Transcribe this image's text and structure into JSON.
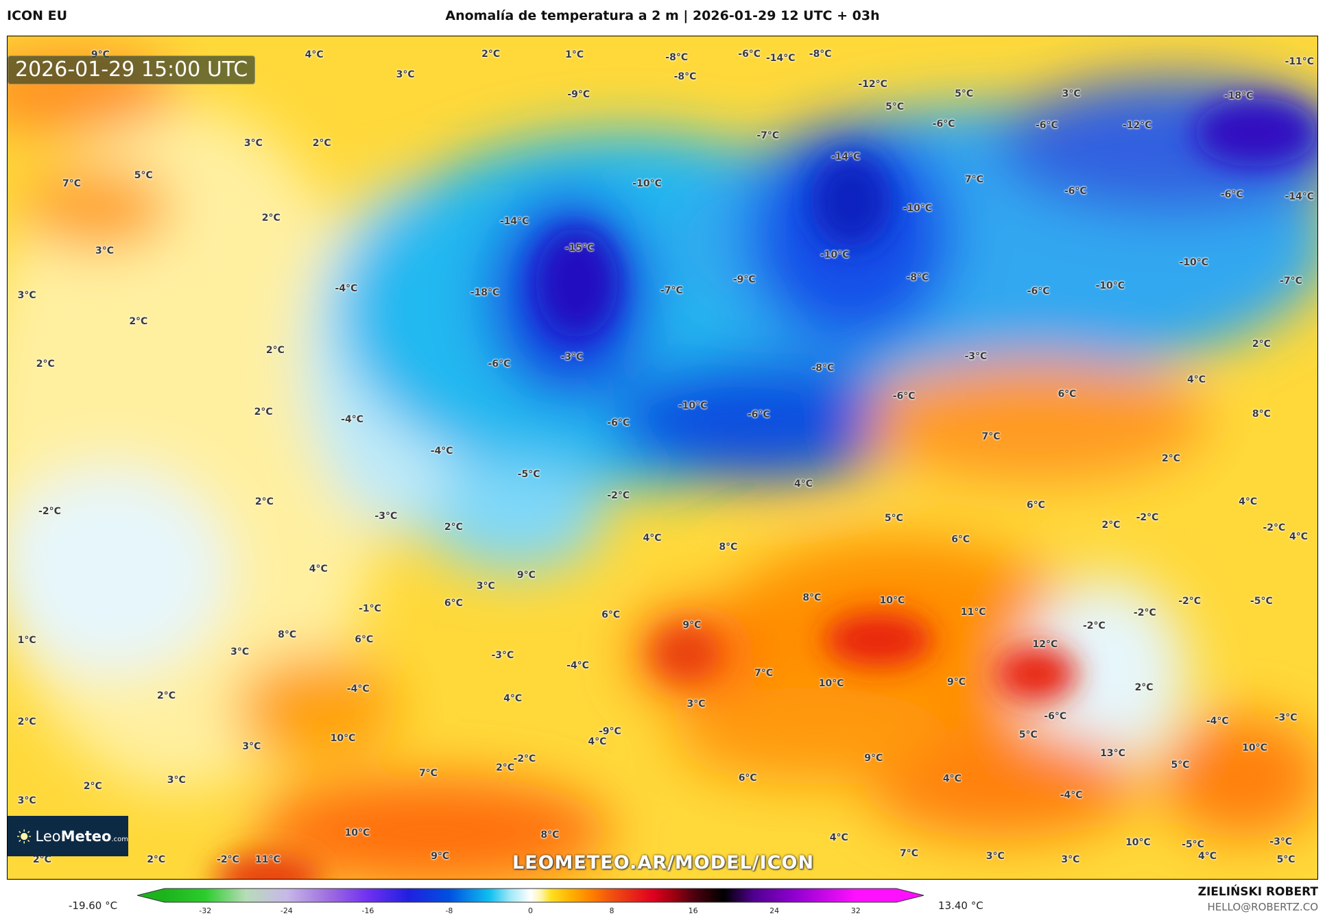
{
  "header": {
    "model": "ICON EU",
    "title": "Anomalía de temperatura a 2 m | 2026-01-29 12 UTC + 03h"
  },
  "map": {
    "valid_time": "2026-01-29 15:00 UTC",
    "watermark": "LEOMETEO.AR/MODEL/ICON",
    "logo": {
      "brand_light": "Leo",
      "brand_bold": "Meteo",
      "suffix": ".com"
    },
    "labels": [
      "9°C",
      "4°C",
      "2°C",
      "1°C",
      "3°C",
      "-8°C",
      "-6°C",
      "-14°C",
      "-8°C",
      "-11°C",
      "-8°C",
      "-9°C",
      "-12°C",
      "5°C",
      "3°C",
      "-18°C",
      "5°C",
      "-6°C",
      "-6°C",
      "-12°C",
      "3°C",
      "2°C",
      "-7°C",
      "7°C",
      "5°C",
      "-14°C",
      "-10°C",
      "7°C",
      "-6°C",
      "-6°C",
      "-14°C",
      "2°C",
      "-14°C",
      "-10°C",
      "3°C",
      "-15°C",
      "-10°C",
      "-9°C",
      "-8°C",
      "-10°C",
      "-7°C",
      "3°C",
      "-4°C",
      "-18°C",
      "-7°C",
      "-6°C",
      "-10°C",
      "2°C",
      "2°C",
      "-3°C",
      "-6°C",
      "-3°C",
      "2°C",
      "2°C",
      "-8°C",
      "4°C",
      "-6°C",
      "6°C",
      "-10°C",
      "-6°C",
      "8°C",
      "2°C",
      "-4°C",
      "-6°C",
      "7°C",
      "-4°C",
      "2°C",
      "4°C",
      "-5°C",
      "-2°C",
      "2°C",
      "-2°C",
      "5°C",
      "6°C",
      "4°C",
      "-3°C",
      "2°C",
      "2°C",
      "-2°C",
      "-2°C",
      "4°C",
      "4°C",
      "6°C",
      "8°C",
      "4°C",
      "3°C",
      "9°C",
      "6°C",
      "-1°C",
      "8°C",
      "10°C",
      "11°C",
      "6°C",
      "9°C",
      "-2°C",
      "-2°C",
      "-5°C",
      "-2°C",
      "1°C",
      "8°C",
      "6°C",
      "3°C",
      "-3°C",
      "12°C",
      "-4°C",
      "7°C",
      "10°C",
      "9°C",
      "2°C",
      "-4°C",
      "4°C",
      "3°C",
      "2°C",
      "-6°C",
      "-4°C",
      "-3°C",
      "2°C",
      "10°C",
      "-9°C",
      "4°C",
      "5°C",
      "3°C",
      "13°C",
      "10°C",
      "9°C",
      "7°C",
      "2°C",
      "-2°C",
      "6°C",
      "4°C",
      "5°C",
      "3°C",
      "2°C",
      "3°C",
      "-4°C",
      "4°C",
      "10°C",
      "8°C",
      "7°C",
      "3°C",
      "3°C",
      "10°C",
      "-5°C",
      "4°C",
      "-3°C",
      "5°C",
      "2°C",
      "2°C",
      "-2°C",
      "11°C",
      "9°C"
    ]
  },
  "colorbar": {
    "min_label": "-19.60 °C",
    "max_label": "13.40 °C",
    "ticks": [
      "-32",
      "-24",
      "-16",
      "-8",
      "0",
      "8",
      "16",
      "24",
      "32"
    ],
    "range": [
      -36,
      36
    ],
    "colors": {
      "-36": "#1db31d",
      "-32": "#2ccc2c",
      "-28": "#b8dcb8",
      "-24": "#c8b8e8",
      "-20": "#a070e0",
      "-16": "#7030f0",
      "-12": "#2020e0",
      "-8": "#0050e0",
      "-4": "#10c0f0",
      "-2": "#a0e8f8",
      "0": "#ffffff",
      "1": "#fff5b0",
      "2": "#ffe020",
      "4": "#ffb000",
      "6": "#ff8000",
      "8": "#f05010",
      "12": "#e00020",
      "14": "#a00010",
      "16": "#500010",
      "19": "#000000",
      "22": "#500090",
      "26": "#9000d0",
      "32": "#ff10ff",
      "36": "#ff10ff"
    }
  },
  "footer": {
    "author": "ZIELIŃSKI ROBERT",
    "email": "HELLO@ROBERTZ.CO"
  }
}
